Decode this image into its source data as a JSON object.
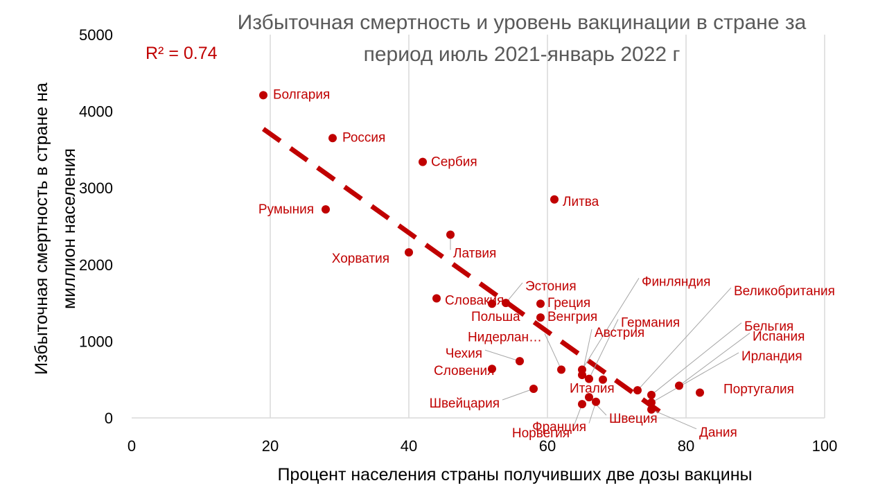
{
  "chart_data": {
    "type": "scatter",
    "title_lines": [
      "Избыточная смертность и уровень вакцинации в стране за",
      "период июль 2021-январь 2022 г"
    ],
    "xlabel": "Процент населения страны получивших две дозы вакцины",
    "ylabel_lines": [
      "Избыточная смертность в стране на",
      "миллион населения"
    ],
    "xlim": [
      0,
      100
    ],
    "ylim": [
      0,
      5000
    ],
    "xticks": [
      0,
      20,
      40,
      60,
      80,
      100
    ],
    "yticks": [
      0,
      1000,
      2000,
      3000,
      4000,
      5000
    ],
    "grid": "vertical",
    "r2_label": "R² = 0.74",
    "trendline": {
      "style": "dashed",
      "x": [
        19,
        77
      ],
      "y": [
        3770,
        30
      ]
    },
    "colors": {
      "points": "#c00000",
      "grid": "#d9d9d9",
      "title": "#595959"
    },
    "points": [
      {
        "label": "Болгария",
        "x": 19,
        "y": 4210
      },
      {
        "label": "Россия",
        "x": 29,
        "y": 3650
      },
      {
        "label": "Сербия",
        "x": 42,
        "y": 3340
      },
      {
        "label": "Румыния",
        "x": 28,
        "y": 2720
      },
      {
        "label": "Литва",
        "x": 61,
        "y": 2850
      },
      {
        "label": "Латвия",
        "x": 46,
        "y": 2390
      },
      {
        "label": "Хорватия",
        "x": 40,
        "y": 2160
      },
      {
        "label": "Словакия",
        "x": 44,
        "y": 1560
      },
      {
        "label": "Польша",
        "x": 52,
        "y": 1490
      },
      {
        "label": "Эстония",
        "x": 54,
        "y": 1500
      },
      {
        "label": "Греция",
        "x": 59,
        "y": 1490
      },
      {
        "label": "Венгрия",
        "x": 59,
        "y": 1310
      },
      {
        "label": "Чехия",
        "x": 56,
        "y": 740
      },
      {
        "label": "Словения",
        "x": 52,
        "y": 640
      },
      {
        "label": "Швейцария",
        "x": 58,
        "y": 380
      },
      {
        "label": "Нидерлан…",
        "x": 62,
        "y": 630
      },
      {
        "label": "Финляндия",
        "x": 65,
        "y": 630
      },
      {
        "label": "Австрия",
        "x": 65,
        "y": 560
      },
      {
        "label": "Германия",
        "x": 66,
        "y": 510
      },
      {
        "label": "Италия",
        "x": 68,
        "y": 500
      },
      {
        "label": "Франция",
        "x": 67,
        "y": 210
      },
      {
        "label": "Норвегия",
        "x": 65,
        "y": 180
      },
      {
        "label": "Швеция",
        "x": 66,
        "y": 270
      },
      {
        "label": "Великобритания",
        "x": 73,
        "y": 360
      },
      {
        "label": "Бельгия",
        "x": 75,
        "y": 300
      },
      {
        "label": "Испания",
        "x": 79,
        "y": 420
      },
      {
        "label": "Ирландия",
        "x": 75,
        "y": 200
      },
      {
        "label": "Португалия",
        "x": 82,
        "y": 330
      },
      {
        "label": "Дания",
        "x": 75,
        "y": 110
      }
    ]
  }
}
